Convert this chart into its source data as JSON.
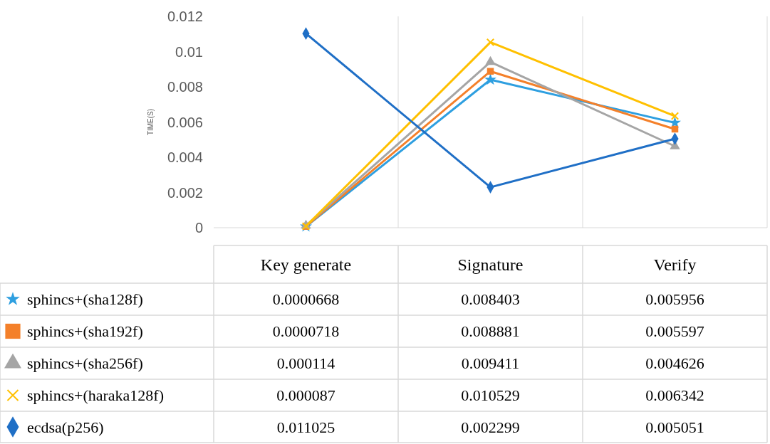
{
  "chart_data": {
    "type": "line",
    "ylabel": "TIME(S)",
    "categories": [
      "Key generate",
      "Signature",
      "Verify"
    ],
    "series": [
      {
        "name": "sphincs+(sha128f)",
        "color": "#2e9fe0",
        "marker": "star",
        "values": [
          6.68e-05,
          0.008403,
          0.005956
        ],
        "value_labels": [
          "0.0000668",
          "0.008403",
          "0.005956"
        ]
      },
      {
        "name": "sphincs+(sha192f)",
        "color": "#f4802a",
        "marker": "square",
        "values": [
          7.18e-05,
          0.008881,
          0.005597
        ],
        "value_labels": [
          "0.0000718",
          "0.008881",
          "0.005597"
        ]
      },
      {
        "name": "sphincs+(sha256f)",
        "color": "#a5a5a5",
        "marker": "triangle",
        "values": [
          0.000114,
          0.009411,
          0.004626
        ],
        "value_labels": [
          "0.000114",
          "0.009411",
          "0.004626"
        ]
      },
      {
        "name": "sphincs+(haraka128f)",
        "color": "#ffc000",
        "marker": "cross",
        "values": [
          8.7e-05,
          0.010529,
          0.006342
        ],
        "value_labels": [
          "0.000087",
          "0.010529",
          "0.006342"
        ]
      },
      {
        "name": "ecdsa(p256)",
        "color": "#1f6fc6",
        "marker": "diamond",
        "values": [
          0.011025,
          0.002299,
          0.005051
        ],
        "value_labels": [
          "0.011025",
          "0.002299",
          "0.005051"
        ]
      }
    ],
    "ylim": [
      0,
      0.012
    ],
    "yticks": [
      0,
      0.002,
      0.004,
      0.006,
      0.008,
      0.01,
      0.012
    ],
    "grid": "x",
    "legend": "bottom"
  }
}
